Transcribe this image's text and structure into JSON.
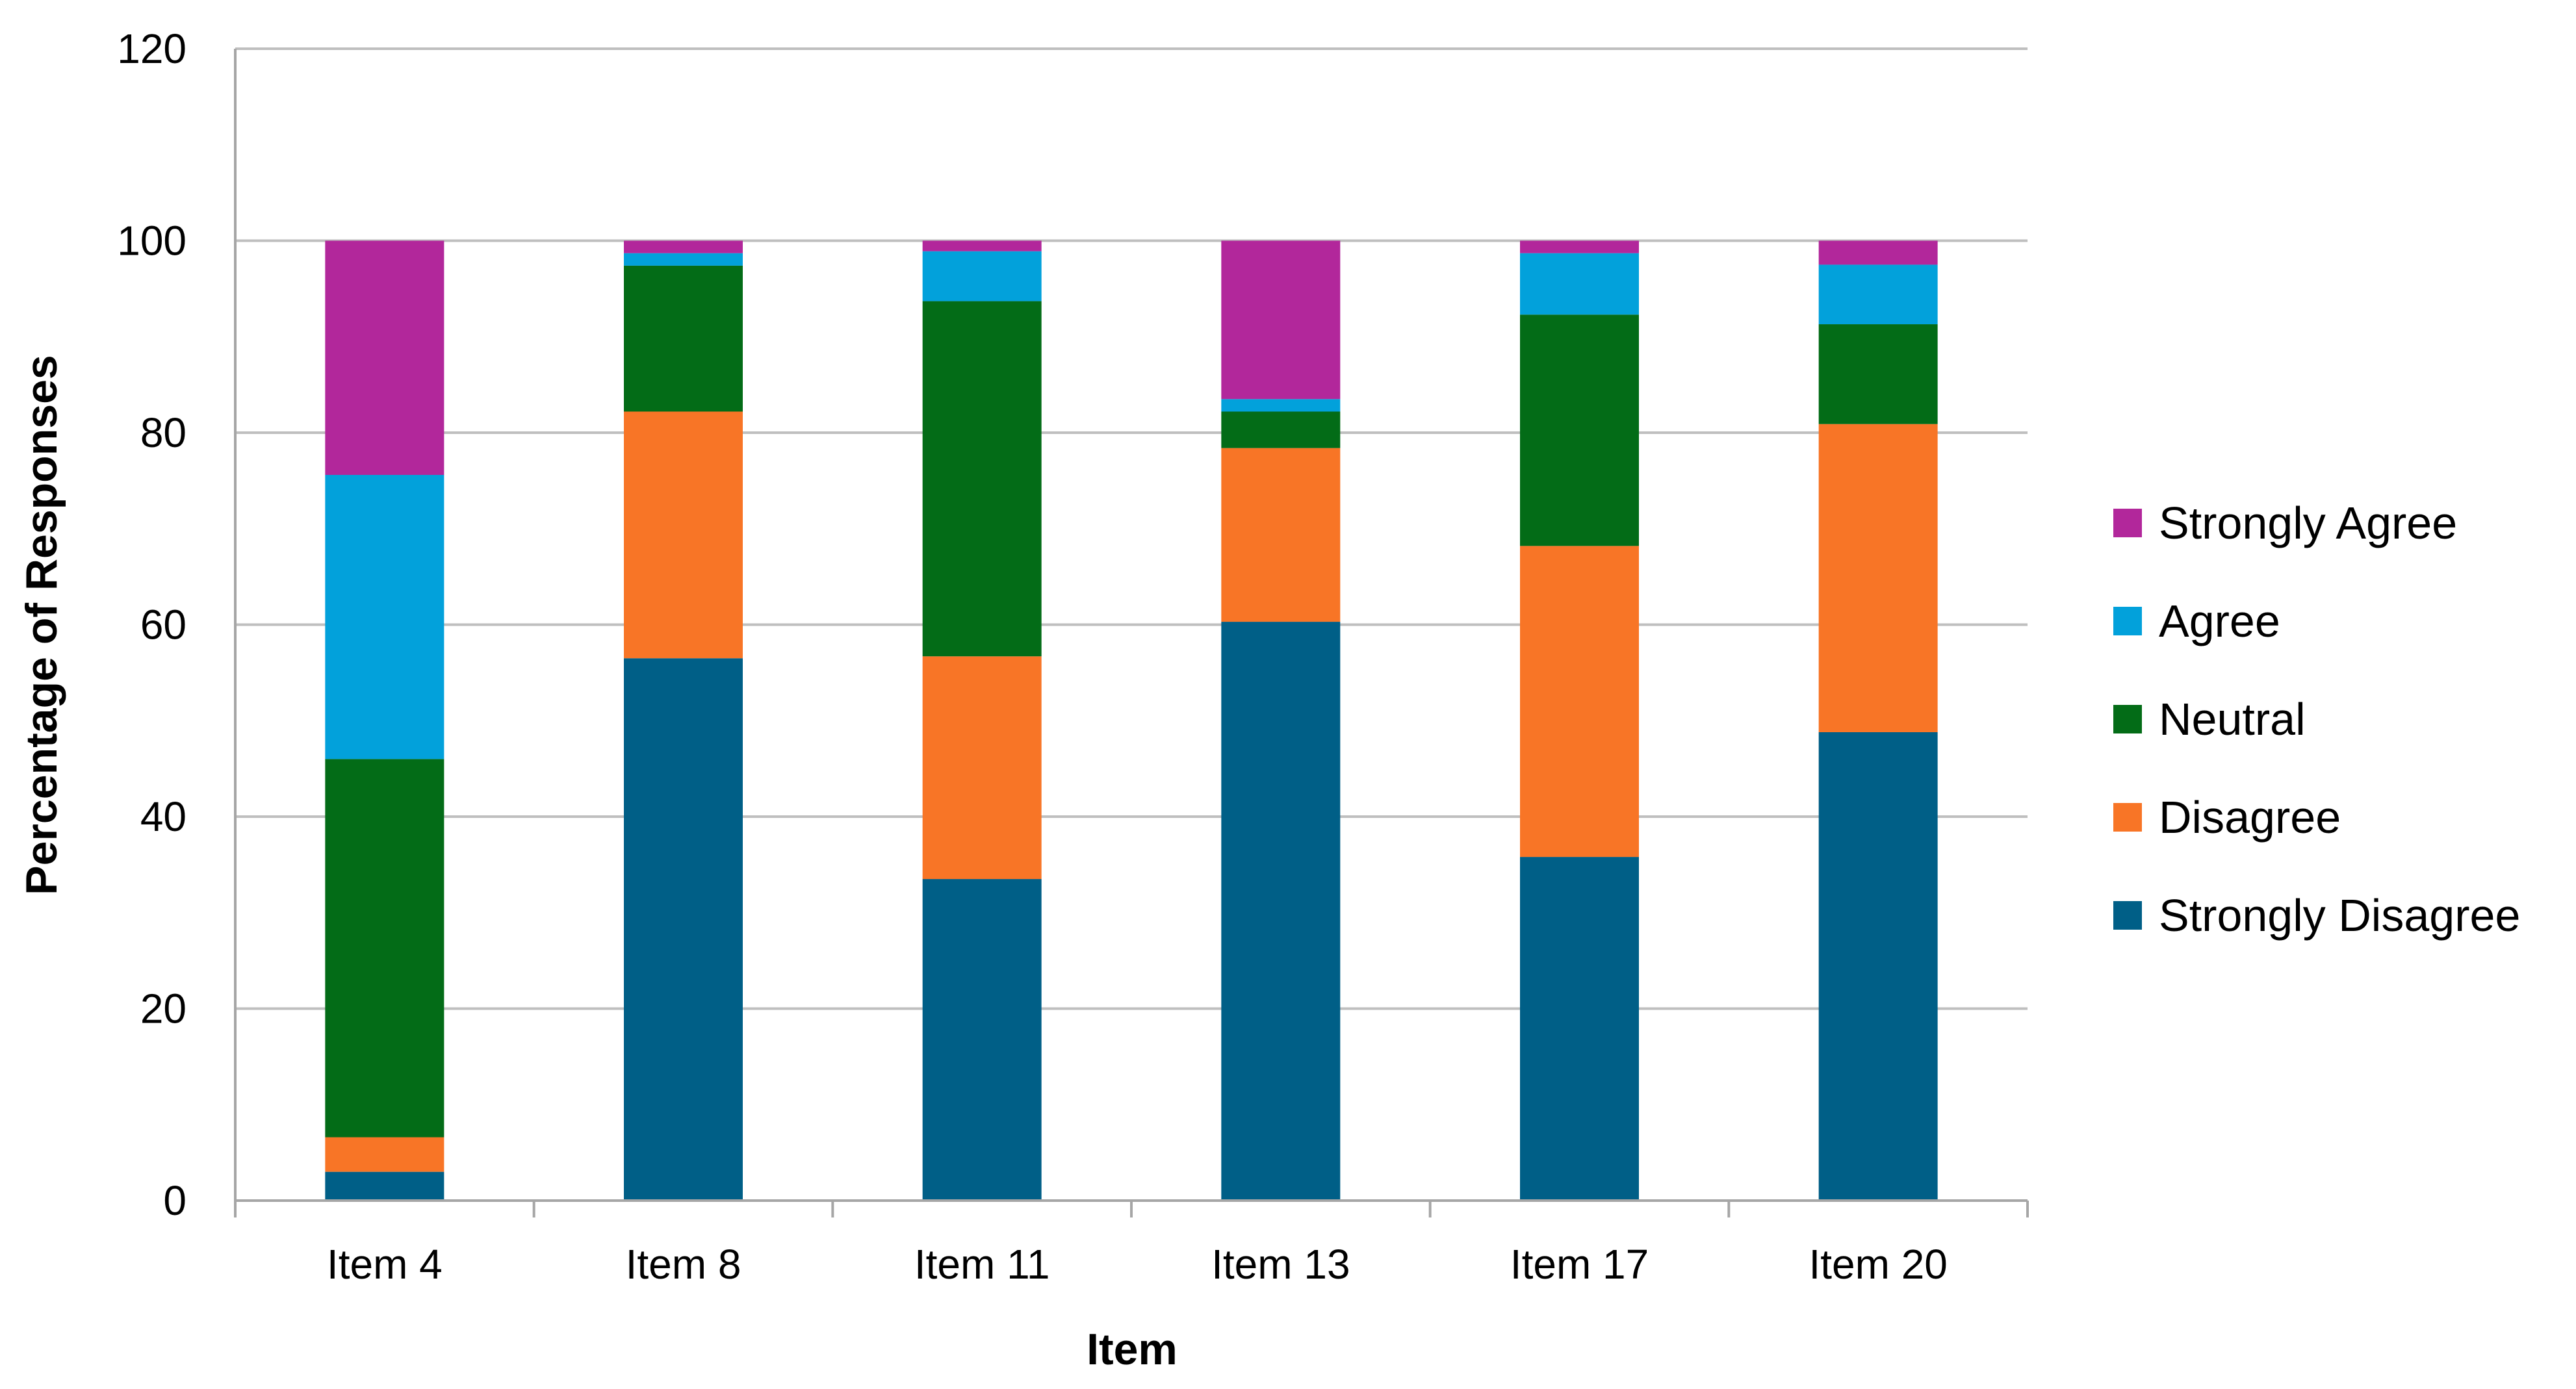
{
  "chart_data": {
    "type": "bar",
    "stacked": true,
    "categories": [
      "Item 4",
      "Item 8",
      "Item 11",
      "Item 13",
      "Item 17",
      "Item 20"
    ],
    "series": [
      {
        "name": "Strongly Disagree",
        "color": "#005F87",
        "values": [
          3,
          56.5,
          33.5,
          60.3,
          35.8,
          48.8
        ]
      },
      {
        "name": "Disagree",
        "color": "#F87526",
        "values": [
          3.6,
          25.7,
          23.2,
          18.1,
          32.4,
          32.1
        ]
      },
      {
        "name": "Neutral",
        "color": "#036C17",
        "values": [
          39.4,
          15.2,
          37,
          3.8,
          24.1,
          10.4
        ]
      },
      {
        "name": "Agree",
        "color": "#02A1DB",
        "values": [
          29.6,
          1.3,
          5.2,
          1.3,
          6.4,
          6.2
        ]
      },
      {
        "name": "Strongly Agree",
        "color": "#B2279B",
        "values": [
          24.4,
          1.3,
          1.1,
          16.5,
          1.3,
          2.5
        ]
      }
    ],
    "xlabel": "Item",
    "ylabel": "Percentage of Responses",
    "ylim": [
      0,
      120
    ],
    "yticks": [
      0,
      20,
      40,
      60,
      80,
      100,
      120
    ],
    "grid": true,
    "legend_position": "right",
    "legend_order": [
      "Strongly Agree",
      "Agree",
      "Neutral",
      "Disagree",
      "Strongly Disagree"
    ]
  }
}
